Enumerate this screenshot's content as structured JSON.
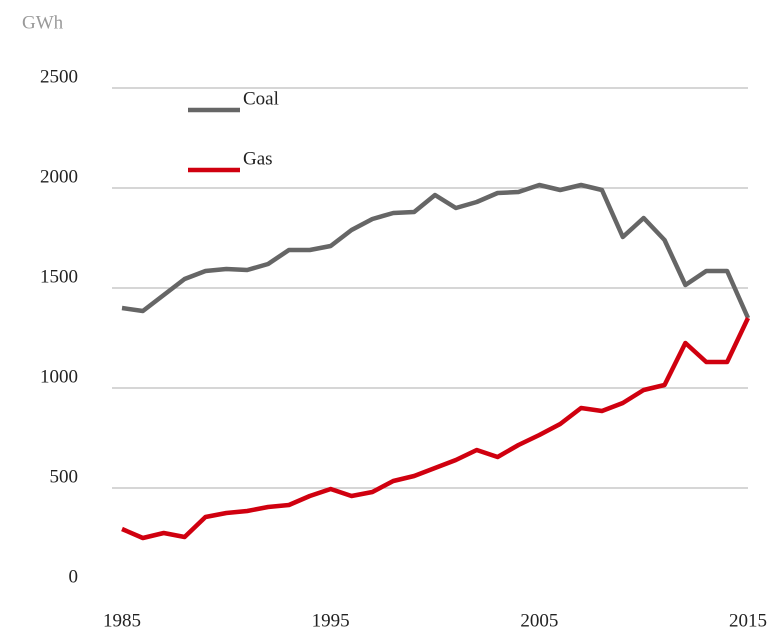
{
  "chart_data": {
    "type": "line",
    "y_label": "GWh",
    "x": [
      1985,
      1986,
      1987,
      1988,
      1989,
      1990,
      1991,
      1992,
      1993,
      1994,
      1995,
      1996,
      1997,
      1998,
      1999,
      2000,
      2001,
      2002,
      2003,
      2004,
      2005,
      2006,
      2007,
      2008,
      2009,
      2010,
      2011,
      2012,
      2013,
      2014,
      2015
    ],
    "series": [
      {
        "name": "Coal",
        "color": "#666666",
        "values": [
          1400,
          1385,
          1465,
          1545,
          1585,
          1595,
          1590,
          1620,
          1690,
          1690,
          1710,
          1790,
          1845,
          1875,
          1880,
          1965,
          1900,
          1930,
          1975,
          1980,
          2015,
          1990,
          2015,
          1990,
          1755,
          1850,
          1740,
          1515,
          1585,
          1585,
          1350
        ]
      },
      {
        "name": "Gas",
        "color": "#d0000f",
        "values": [
          295,
          250,
          275,
          255,
          355,
          375,
          385,
          405,
          415,
          460,
          495,
          460,
          480,
          535,
          560,
          600,
          640,
          690,
          655,
          715,
          765,
          820,
          900,
          885,
          925,
          990,
          1015,
          1225,
          1130,
          1130,
          1350
        ]
      }
    ],
    "xlim": [
      1985,
      2015
    ],
    "xticks": [
      1985,
      1995,
      2005,
      2015
    ],
    "ylim": [
      0,
      2500
    ],
    "yticks": [
      0,
      500,
      1000,
      1500,
      2000,
      2500
    ],
    "grid": true,
    "legend": "top-left"
  }
}
